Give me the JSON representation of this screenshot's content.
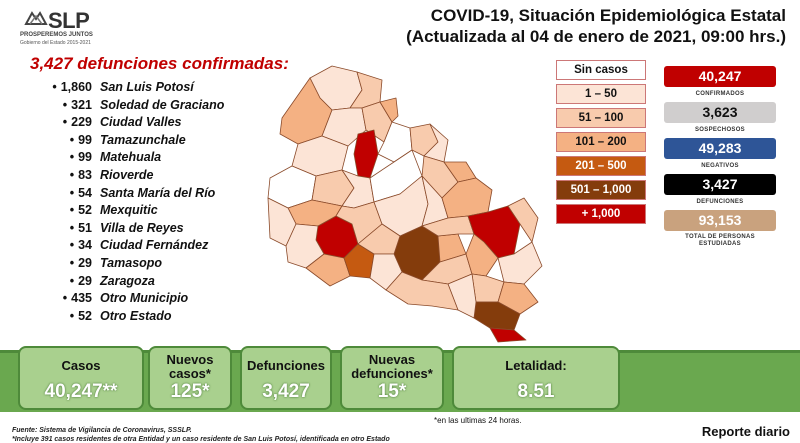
{
  "logo": {
    "name": "SLP",
    "slogan": "PROSPEREMOS JUNTOS",
    "subtitle": "Gobierno del Estado 2015-2021"
  },
  "header": {
    "title_line1": "COVID-19, Situación Epidemiológica Estatal",
    "title_line2": "(Actualizada al 04 de enero de 2021, 09:00 hrs.)"
  },
  "deaths_heading": "3,427 defunciones confirmadas:",
  "municipalities": [
    {
      "count": "1,860",
      "name": "San Luis Potosí"
    },
    {
      "count": "321",
      "name": "Soledad de Graciano"
    },
    {
      "count": "229",
      "name": "Ciudad Valles"
    },
    {
      "count": "99",
      "name": "Tamazunchale"
    },
    {
      "count": "99",
      "name": "Matehuala"
    },
    {
      "count": "83",
      "name": "Rioverde"
    },
    {
      "count": "54",
      "name": "Santa María del Río"
    },
    {
      "count": "52",
      "name": "Mexquitic"
    },
    {
      "count": "51",
      "name": "Villa de Reyes"
    },
    {
      "count": "34",
      "name": "Ciudad Fernández"
    },
    {
      "count": "29",
      "name": "Tamasopo"
    },
    {
      "count": "29",
      "name": "Zaragoza"
    },
    {
      "count": "435",
      "name": "Otro Municipio"
    },
    {
      "count": "52",
      "name": "Otro Estado"
    }
  ],
  "legend": [
    {
      "label": "Sin casos",
      "color": "#ffffff",
      "text_color": "#111111"
    },
    {
      "label": "1 – 50",
      "color": "#fce4d6",
      "text_color": "#111111"
    },
    {
      "label": "51 – 100",
      "color": "#f8cbad",
      "text_color": "#111111"
    },
    {
      "label": "101 – 200",
      "color": "#f4b183",
      "text_color": "#111111"
    },
    {
      "label": "201 – 500",
      "color": "#c55a11",
      "text_color": "#ffffff"
    },
    {
      "label": "501 – 1,000",
      "color": "#843c0c",
      "text_color": "#ffffff"
    },
    {
      "label": "+ 1,000",
      "color": "#c00000",
      "text_color": "#ffffff"
    }
  ],
  "stats": [
    {
      "value": "40,247",
      "label": "CONFIRMADOS",
      "color": "#c00000"
    },
    {
      "value": "3,623",
      "label": "SOSPECHOSOS",
      "color": "#d0cece"
    },
    {
      "value": "49,283",
      "label": "NEGATIVOS",
      "color": "#2e5597"
    },
    {
      "value": "3,427",
      "label": "DEFUNCIONES",
      "color": "#000000"
    },
    {
      "value": "93,153",
      "label": "TOTAL DE PERSONAS ESTUDIADAS",
      "color": "#c9a27e"
    }
  ],
  "summary": [
    {
      "label": "Casos",
      "value": "40,247**"
    },
    {
      "label": "Nuevos casos*",
      "value": "125*"
    },
    {
      "label": "Defunciones",
      "value": "3,427"
    },
    {
      "label": "Nuevas defunciones*",
      "value": "15*"
    },
    {
      "label": "Letalidad:",
      "value": "8.51"
    }
  ],
  "footer": {
    "note_24h": "*en las ultimas 24 horas.",
    "source": "Fuente: Sistema de Vigilancia de Coronavirus, SSSLP.",
    "note_cases": "*Incluye 391 casos residentes de otra Entidad y un caso residente de San Luis Potosí, identificada en otro Estado",
    "report": "Reporte diario"
  }
}
